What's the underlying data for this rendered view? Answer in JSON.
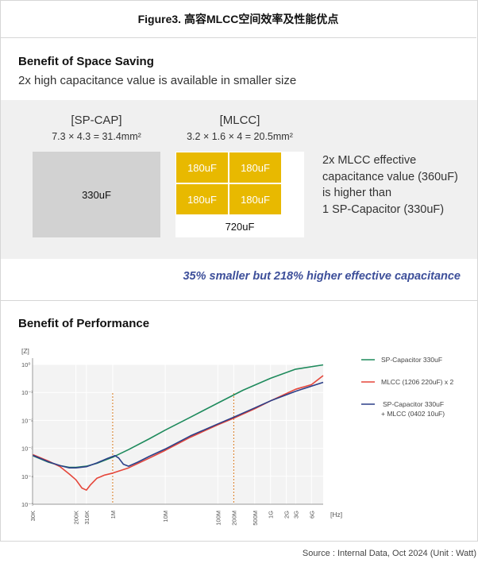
{
  "figure_title": "Figure3. 高容MLCC空间效率及性能优点",
  "space": {
    "title": "Benefit of Space Saving",
    "subtitle": "2x high capacitance value is available in smaller size",
    "spcap": {
      "label": "[SP-CAP]",
      "dims": "7.3 × 4.3 = 31.4mm²",
      "value": "330uF"
    },
    "mlcc": {
      "label": "[MLCC]",
      "dims": "3.2 × 1.6 × 4 = 20.5mm²",
      "cells": [
        "180uF",
        "180uF",
        "180uF",
        "180uF"
      ],
      "total": "720uF"
    },
    "description": [
      "2x MLCC effective",
      "capacitance value (360uF)",
      "is higher than",
      "1 SP-Capacitor (330uF)"
    ],
    "claim": "35% smaller but 218% higher effective capacitance",
    "colors": {
      "mlcc_fill": "#e8b900",
      "spcap_fill": "#d2d2d2",
      "claim": "#3d4f9a"
    }
  },
  "performance": {
    "title": "Benefit of Performance"
  },
  "chart_data": {
    "type": "line",
    "title": "",
    "xlabel": "[Hz]",
    "ylabel": "[Z]",
    "xscale": "log",
    "yscale": "log",
    "xlim": [
      30000,
      10000000000
    ],
    "ylim": [
      1e-05,
      1
    ],
    "xticks": [
      {
        "value": 30000,
        "label": "30K"
      },
      {
        "value": 200000,
        "label": "200K"
      },
      {
        "value": 316000,
        "label": "316K"
      },
      {
        "value": 1000000,
        "label": "1M"
      },
      {
        "value": 10000000,
        "label": "10M"
      },
      {
        "value": 100000000,
        "label": "100M"
      },
      {
        "value": 200000000,
        "label": "200M"
      },
      {
        "value": 500000000,
        "label": "500M"
      },
      {
        "value": 1000000000,
        "label": "1G"
      },
      {
        "value": 2000000000,
        "label": "2G"
      },
      {
        "value": 3000000000,
        "label": "3G"
      },
      {
        "value": 6000000000,
        "label": "6G"
      }
    ],
    "yticks": [
      {
        "value": 1,
        "label": "10⁰"
      },
      {
        "value": 0.1,
        "label": "10⁻¹"
      },
      {
        "value": 0.01,
        "label": "10⁻²"
      },
      {
        "value": 0.001,
        "label": "10⁻³"
      },
      {
        "value": 0.0001,
        "label": "10⁻⁴"
      },
      {
        "value": 1e-05,
        "label": "10⁻⁵"
      }
    ],
    "reference_lines": [
      1000000,
      200000000
    ],
    "series": [
      {
        "name": "SP-Capacitor 330uF",
        "color": "#1e8a5c",
        "points": [
          [
            30000,
            0.00055
          ],
          [
            60000,
            0.00032
          ],
          [
            100000,
            0.00024
          ],
          [
            150000,
            0.00021
          ],
          [
            200000,
            0.00021
          ],
          [
            316000,
            0.00023
          ],
          [
            500000,
            0.00029
          ],
          [
            1000000,
            0.00048
          ],
          [
            2000000,
            0.0009
          ],
          [
            5000000,
            0.0022
          ],
          [
            10000000,
            0.0045
          ],
          [
            30000000,
            0.013
          ],
          [
            100000000,
            0.042
          ],
          [
            300000000,
            0.12
          ],
          [
            1000000000,
            0.32
          ],
          [
            3000000000,
            0.68
          ],
          [
            10000000000,
            0.97
          ]
        ]
      },
      {
        "name": "MLCC (1206 220uF) x 2",
        "color": "#e5463a",
        "points": [
          [
            30000,
            0.0006
          ],
          [
            60000,
            0.00035
          ],
          [
            100000,
            0.00022
          ],
          [
            150000,
            0.00012
          ],
          [
            200000,
            7.5e-05
          ],
          [
            260000,
            3.8e-05
          ],
          [
            316000,
            3.2e-05
          ],
          [
            380000,
            5e-05
          ],
          [
            500000,
            8.5e-05
          ],
          [
            700000,
            0.00011
          ],
          [
            1000000,
            0.00013
          ],
          [
            2000000,
            0.0002
          ],
          [
            5000000,
            0.00045
          ],
          [
            10000000,
            0.00085
          ],
          [
            30000000,
            0.0025
          ],
          [
            100000000,
            0.007
          ],
          [
            200000000,
            0.012
          ],
          [
            500000000,
            0.026
          ],
          [
            1000000000,
            0.05
          ],
          [
            3000000000,
            0.13
          ],
          [
            6000000000,
            0.19
          ],
          [
            10000000000,
            0.4
          ]
        ]
      },
      {
        "name": "SP-Capacitor 330uF + MLCC (0402 10uF)",
        "color": "#2c3f88",
        "points": [
          [
            30000,
            0.00057
          ],
          [
            60000,
            0.00033
          ],
          [
            100000,
            0.00024
          ],
          [
            150000,
            0.0002
          ],
          [
            200000,
            0.0002
          ],
          [
            316000,
            0.00022
          ],
          [
            500000,
            0.0003
          ],
          [
            800000,
            0.00044
          ],
          [
            1100000,
            0.00055
          ],
          [
            1300000,
            0.00045
          ],
          [
            1600000,
            0.00027
          ],
          [
            2000000,
            0.00023
          ],
          [
            3000000,
            0.00032
          ],
          [
            5000000,
            0.00052
          ],
          [
            10000000,
            0.00095
          ],
          [
            30000000,
            0.0028
          ],
          [
            100000000,
            0.0075
          ],
          [
            200000000,
            0.013
          ],
          [
            500000000,
            0.028
          ],
          [
            1000000000,
            0.05
          ],
          [
            3000000000,
            0.11
          ],
          [
            10000000000,
            0.23
          ]
        ]
      }
    ]
  },
  "source": "Source : Internal Data, Oct 2024 (Unit : Watt)"
}
